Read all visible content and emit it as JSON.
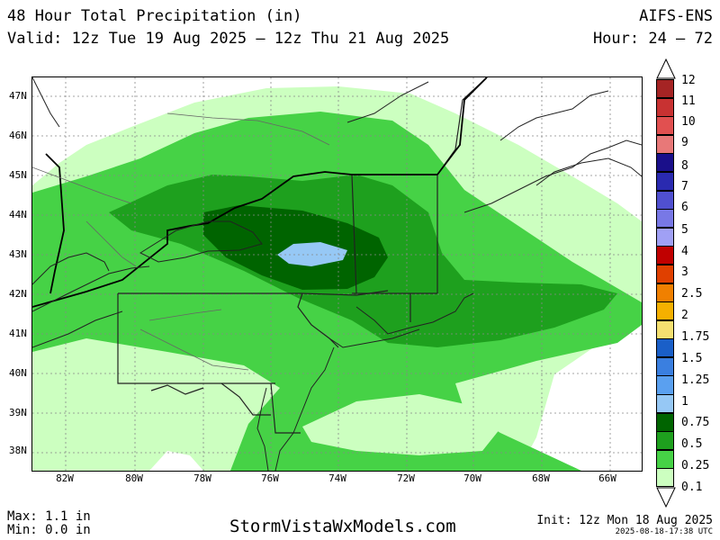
{
  "header": {
    "title": "48 Hour Total Precipitation (in)",
    "valid": "Valid: 12z Tue 19 Aug 2025 — 12z Thu 21 Aug 2025",
    "model": "AIFS-ENS",
    "hours": "Hour: 24 — 72"
  },
  "map": {
    "lat_labels": [
      "47N",
      "46N",
      "45N",
      "44N",
      "43N",
      "42N",
      "41N",
      "40N",
      "39N",
      "38N"
    ],
    "lon_labels": [
      "82W",
      "80W",
      "78W",
      "76W",
      "74W",
      "72W",
      "70W",
      "68W",
      "66W"
    ]
  },
  "colorbar": {
    "levels": [
      "12",
      "11",
      "10",
      "9",
      "8",
      "7",
      "6",
      "5",
      "4",
      "3",
      "2.5",
      "2",
      "1.75",
      "1.5",
      "1.25",
      "1",
      "0.75",
      "0.5",
      "0.25",
      "0.1"
    ],
    "colors": [
      "#a52424",
      "#c83232",
      "#e15050",
      "#e87878",
      "#1a0f8a",
      "#2a2ab0",
      "#5050d0",
      "#7878e6",
      "#a0a0f5",
      "#c00000",
      "#e04000",
      "#f08000",
      "#f5b000",
      "#f5e070",
      "#1a5fc8",
      "#3a7fe0",
      "#5aa0f0",
      "#96c8f5",
      "#006400",
      "#1ea01e",
      "#46d246",
      "#ccffc0"
    ]
  },
  "footer": {
    "max": "Max: 1.1 in",
    "min": "Min: 0.0 in",
    "site": "StormVistaWxModels.com",
    "init": "Init: 12z Mon 18 Aug 2025",
    "timestamp": "2025-08-18-17:38 UTC"
  }
}
